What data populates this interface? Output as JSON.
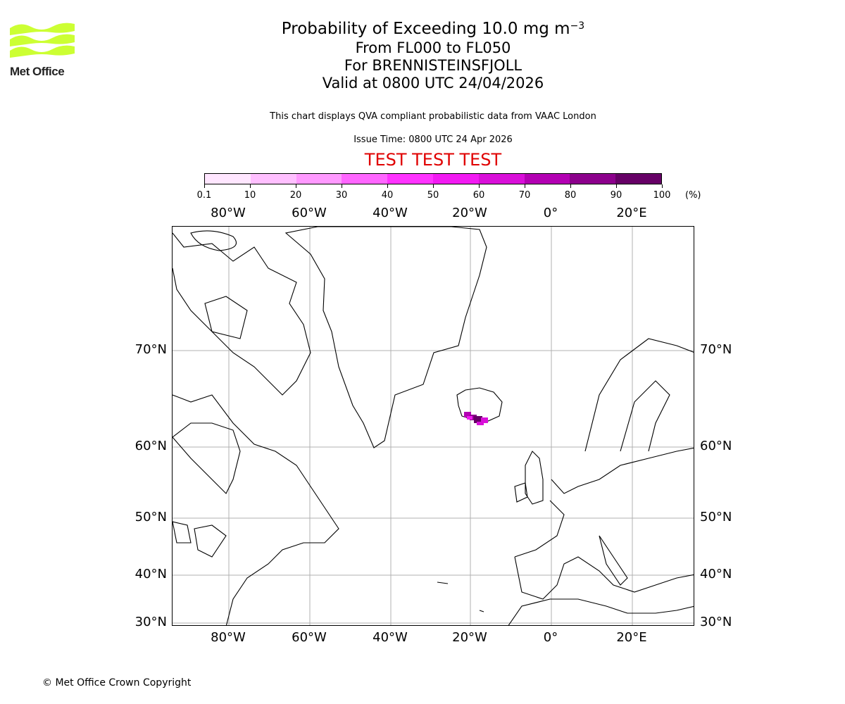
{
  "logo": {
    "text": "Met Office",
    "color": "#ccff33"
  },
  "header": {
    "title_main": "Probability of Exceeding 10.0 mg m",
    "title_sup": "−3",
    "line2": "From FL000 to FL050",
    "line3": "For BRENNISTEINSFJOLL",
    "line4": "Valid at 0800 UTC 24/04/2026",
    "description": "This chart displays QVA compliant probabilistic data from VAAC London",
    "issue_time": "Issue Time: 0800 UTC 24 Apr 2026",
    "test_banner": "TEST TEST TEST"
  },
  "colorbar": {
    "unit": "(%)",
    "ticks": [
      "0.1",
      "10",
      "20",
      "30",
      "40",
      "50",
      "60",
      "70",
      "80",
      "90",
      "100"
    ],
    "colors": [
      "#ffe6ff",
      "#ffbfff",
      "#ff99ff",
      "#ff66ff",
      "#ff33ff",
      "#f21af2",
      "#d90fd9",
      "#b300b3",
      "#8c008c",
      "#660066"
    ]
  },
  "map": {
    "lon_labels": [
      "80°W",
      "60°W",
      "40°W",
      "20°W",
      "0°",
      "20°E"
    ],
    "lat_labels": [
      "70°N",
      "60°N",
      "50°N",
      "40°N",
      "30°N"
    ],
    "volcano": "BRENNISTEINSFJOLL"
  },
  "footer": {
    "copyright": "© Met Office Crown Copyright"
  },
  "chart_data": {
    "type": "heatmap",
    "title": "Probability of Exceeding 10.0 mg m^-3, From FL000 to FL050, For BRENNISTEINSFJOLL, Valid at 0800 UTC 24/04/2026",
    "colorbar_levels": [
      0.1,
      10,
      20,
      30,
      40,
      50,
      60,
      70,
      80,
      90,
      100
    ],
    "colorbar_unit": "%",
    "x_ticks": [
      "80°W",
      "60°W",
      "40°W",
      "20°W",
      "0°",
      "20°E"
    ],
    "y_ticks": [
      "70°N",
      "60°N",
      "50°N",
      "40°N",
      "30°N"
    ],
    "grid": true,
    "features": [
      {
        "name": "ash plume",
        "location": "south-west Iceland, approx 63-64°N, 17-21°W",
        "probability_range": "50-90%"
      }
    ]
  }
}
